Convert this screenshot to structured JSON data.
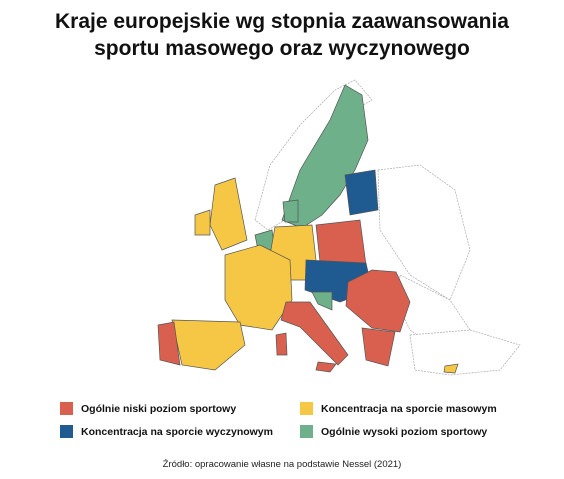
{
  "title": "Kraje europejskie wg stopnia zaawansowania sportu masowego oraz wyczynowego",
  "legend": [
    {
      "label": "Ogólnie niski poziom sportowy",
      "color": "#d9604e"
    },
    {
      "label": "Koncentracja na sporcie masowym",
      "color": "#f6c744"
    },
    {
      "label": "Koncentracja na sporcie wyczynowym",
      "color": "#1f5a91"
    },
    {
      "label": "Ogólnie wysoki poziom sportowy",
      "color": "#6db08a"
    }
  ],
  "source": "Źródło: opracowanie własne na podstawie Nessel (2021)"
}
